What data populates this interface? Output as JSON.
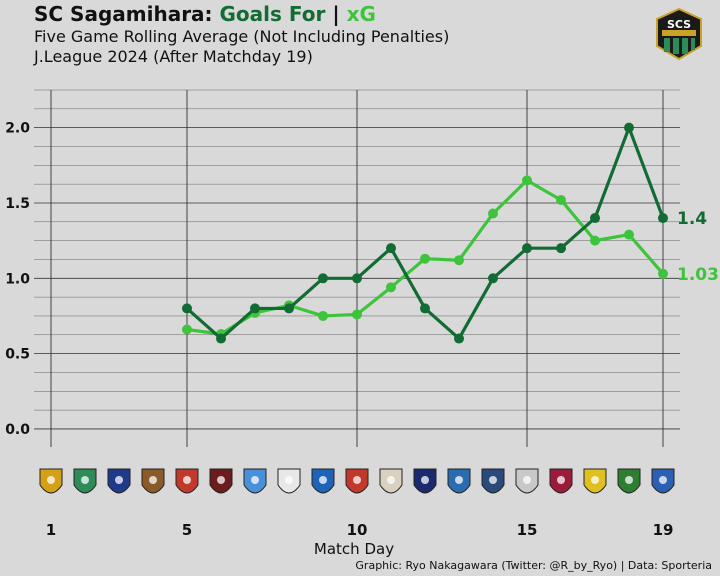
{
  "title": {
    "team": "SC Sagamihara:",
    "goals_for": "Goals For",
    "separator": "|",
    "xg": "xG"
  },
  "subtitle": "Five Game Rolling Average (Not Including Penalties)",
  "subtitle2": "J.League 2024 (After Matchday 19)",
  "credit": "Graphic: Ryo Nakagawara (Twitter: @R_by_Ryo) | Data: Sporteria",
  "team_badge": {
    "text": "SCS"
  },
  "colors": {
    "goals_for": "#136b34",
    "xg": "#3ec43c",
    "background": "#d9d9d9",
    "grid": "#333333"
  },
  "chart_data": {
    "type": "line",
    "xlabel": "Match Day",
    "ylabel": "",
    "xlim": [
      0.5,
      19.5
    ],
    "ylim": [
      -0.12,
      2.25
    ],
    "x_ticks": [
      1,
      5,
      10,
      15,
      19
    ],
    "y_ticks": [
      0.0,
      0.5,
      1.0,
      1.5,
      2.0
    ],
    "y_tick_labels": [
      "0.0",
      "0.5",
      "1.0",
      "1.5",
      "2.0"
    ],
    "grid": true,
    "series": [
      {
        "key": "goals_for",
        "color": "#136b34",
        "x": [
          5,
          6,
          7,
          8,
          9,
          10,
          11,
          12,
          13,
          14,
          15,
          16,
          17,
          18,
          19
        ],
        "values": [
          0.8,
          0.6,
          0.8,
          0.8,
          1.0,
          1.0,
          1.2,
          0.8,
          0.6,
          1.0,
          1.2,
          1.2,
          1.4,
          2.0,
          1.4
        ],
        "end_label": "1.4"
      },
      {
        "key": "xg",
        "color": "#3ec43c",
        "x": [
          5,
          6,
          7,
          8,
          9,
          10,
          11,
          12,
          13,
          14,
          15,
          16,
          17,
          18,
          19
        ],
        "values": [
          0.66,
          0.63,
          0.77,
          0.82,
          0.75,
          0.76,
          0.94,
          1.13,
          1.12,
          1.43,
          1.65,
          1.52,
          1.25,
          1.29,
          1.03
        ],
        "end_label": "1.03"
      }
    ],
    "opponent_crests": [
      "crest-1",
      "crest-2",
      "crest-3",
      "crest-4",
      "crest-5",
      "crest-6",
      "crest-7",
      "crest-8",
      "crest-9",
      "crest-10",
      "crest-11",
      "crest-12",
      "crest-13",
      "crest-14",
      "crest-15",
      "crest-16",
      "crest-17",
      "crest-18",
      "crest-19"
    ],
    "crest_colors": [
      "#d4a017",
      "#2e8b57",
      "#1f3a8a",
      "#8b5a2b",
      "#c0392b",
      "#6b1d1d",
      "#4a90d9",
      "#e8e8e8",
      "#1e63b8",
      "#c0392b",
      "#d8d0c0",
      "#1a2a6c",
      "#2b6cb0",
      "#2a4a7a",
      "#c8c8c8",
      "#9b1c3a",
      "#e0c020",
      "#2e7d32",
      "#2b5fb3"
    ]
  }
}
